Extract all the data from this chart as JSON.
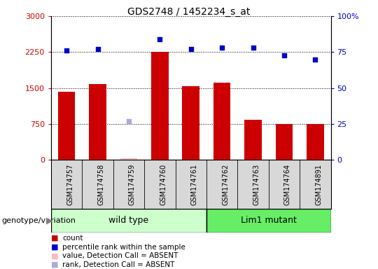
{
  "title": "GDS2748 / 1452234_s_at",
  "samples": [
    "GSM174757",
    "GSM174758",
    "GSM174759",
    "GSM174760",
    "GSM174761",
    "GSM174762",
    "GSM174763",
    "GSM174764",
    "GSM174891"
  ],
  "counts": [
    1420,
    1580,
    40,
    2250,
    1540,
    1620,
    840,
    750,
    750
  ],
  "percentile_ranks": [
    76,
    77,
    null,
    84,
    77,
    78,
    78,
    73,
    70
  ],
  "absent_count": [
    null,
    null,
    40,
    null,
    null,
    null,
    null,
    null,
    null
  ],
  "absent_rank": [
    null,
    null,
    27,
    null,
    null,
    null,
    null,
    null,
    null
  ],
  "wild_type_indices": [
    0,
    1,
    2,
    3,
    4
  ],
  "lim1_mutant_indices": [
    5,
    6,
    7,
    8
  ],
  "left_ylim": [
    0,
    3000
  ],
  "right_ylim": [
    0,
    100
  ],
  "left_yticks": [
    0,
    750,
    1500,
    2250,
    3000
  ],
  "right_yticks": [
    0,
    25,
    50,
    75,
    100
  ],
  "right_yticklabels": [
    "0",
    "25",
    "50",
    "75",
    "100%"
  ],
  "bar_color": "#cc0000",
  "dot_color_present": "#0000cc",
  "absent_bar_color": "#ffbbbb",
  "absent_dot_color": "#aaaadd",
  "wild_type_color": "#ccffcc",
  "lim1_color": "#66ee66",
  "bg_color": "#d8d8d8",
  "plot_bg": "#ffffff",
  "bar_width": 0.55
}
